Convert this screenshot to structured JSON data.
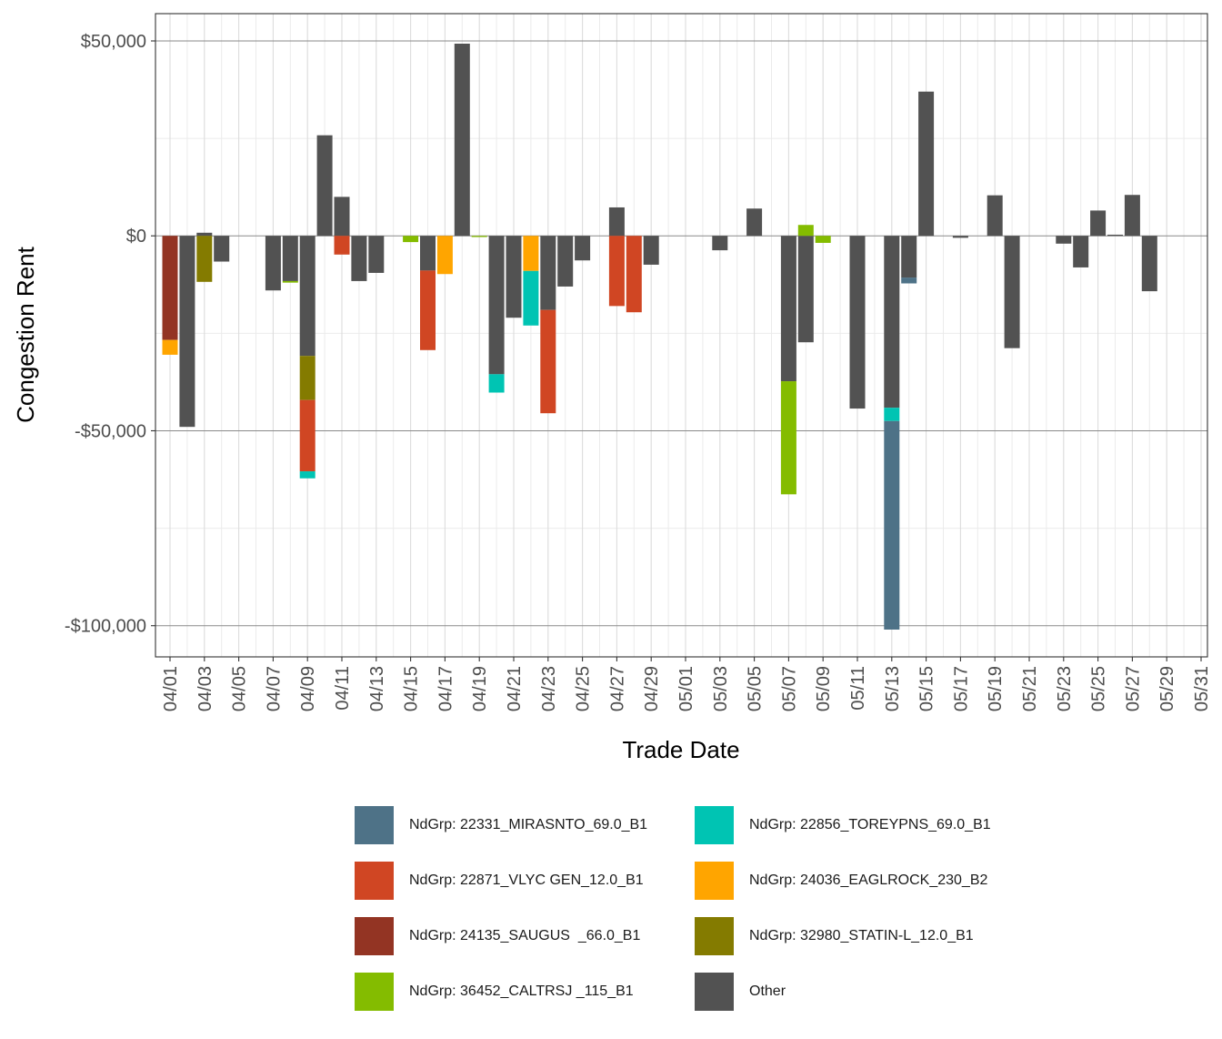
{
  "chart_data": {
    "type": "bar",
    "stacked": true,
    "xlabel": "Trade Date",
    "ylabel": "Congestion Rent",
    "ylim": [
      -108000,
      57000
    ],
    "y_ticks": [
      50000,
      0,
      -50000,
      -100000
    ],
    "y_tick_labels": [
      "$50,000",
      "$0",
      "-$50,000",
      "-$100,000"
    ],
    "grid": true,
    "legend_position": "bottom",
    "categories": [
      "04/01",
      "04/02",
      "04/03",
      "04/04",
      "04/05",
      "04/06",
      "04/07",
      "04/08",
      "04/09",
      "04/10",
      "04/11",
      "04/12",
      "04/13",
      "04/14",
      "04/15",
      "04/16",
      "04/17",
      "04/18",
      "04/19",
      "04/20",
      "04/21",
      "04/22",
      "04/23",
      "04/24",
      "04/25",
      "04/26",
      "04/27",
      "04/28",
      "04/29",
      "04/30",
      "05/01",
      "05/02",
      "05/03",
      "05/04",
      "05/05",
      "05/06",
      "05/07",
      "05/08",
      "05/09",
      "05/10",
      "05/11",
      "05/12",
      "05/13",
      "05/14",
      "05/15",
      "05/16",
      "05/17",
      "05/18",
      "05/19",
      "05/20",
      "05/21",
      "05/22",
      "05/23",
      "05/24",
      "05/25",
      "05/26",
      "05/27",
      "05/28",
      "05/29",
      "05/30",
      "05/31"
    ],
    "x_tick_labels": [
      "04/01",
      "04/03",
      "04/05",
      "04/07",
      "04/09",
      "04/11",
      "04/13",
      "04/15",
      "04/17",
      "04/19",
      "04/21",
      "04/23",
      "04/25",
      "04/27",
      "04/29",
      "05/01",
      "05/03",
      "05/05",
      "05/07",
      "05/09",
      "05/11",
      "05/13",
      "05/15",
      "05/17",
      "05/19",
      "05/21",
      "05/23",
      "05/25",
      "05/27",
      "05/29",
      "05/31"
    ],
    "stack_order": [
      "Other",
      "NdGrp: 24135_SAUGUS  _66.0_B1",
      "NdGrp: 32980_STATIN-L_12.0_B1",
      "NdGrp: 22871_VLYC GEN_12.0_B1",
      "NdGrp: 24036_EAGLROCK_230_B2",
      "NdGrp: 22856_TOREYPNS_69.0_B1",
      "NdGrp: 36452_CALTRSJ _115_B1",
      "NdGrp: 22331_MIRASNTO_69.0_B1"
    ],
    "series": [
      {
        "name": "NdGrp: 22331_MIRASNTO_69.0_B1",
        "color": "#4e7287",
        "values": [
          0,
          0,
          0,
          0,
          0,
          0,
          0,
          0,
          0,
          0,
          0,
          0,
          0,
          0,
          0,
          0,
          0,
          0,
          0,
          0,
          0,
          0,
          0,
          0,
          0,
          0,
          0,
          0,
          0,
          0,
          0,
          0,
          0,
          0,
          0,
          0,
          0,
          0,
          0,
          0,
          0,
          0,
          -53500,
          -1500,
          0,
          0,
          0,
          0,
          0,
          0,
          0,
          0,
          0,
          0,
          0,
          0,
          0,
          0,
          0,
          0,
          0
        ]
      },
      {
        "name": "NdGrp: 22856_TOREYPNS_69.0_B1",
        "color": "#00c4b3",
        "values": [
          0,
          0,
          0,
          0,
          0,
          0,
          0,
          0,
          -1800,
          0,
          0,
          0,
          0,
          0,
          0,
          0,
          0,
          0,
          0,
          -4700,
          0,
          -14000,
          0,
          0,
          0,
          0,
          0,
          0,
          0,
          0,
          0,
          0,
          0,
          0,
          0,
          0,
          0,
          0,
          0,
          0,
          0,
          0,
          -3400,
          0,
          0,
          0,
          0,
          0,
          0,
          0,
          0,
          0,
          0,
          0,
          0,
          0,
          0,
          0,
          0,
          0,
          0
        ]
      },
      {
        "name": "NdGrp: 22871_VLYC GEN_12.0_B1",
        "color": "#d04623",
        "values": [
          0,
          0,
          0,
          0,
          0,
          0,
          0,
          0,
          -18300,
          0,
          -4800,
          0,
          0,
          0,
          0,
          -20400,
          0,
          0,
          0,
          0,
          0,
          0,
          -26500,
          0,
          0,
          0,
          -18000,
          -19600,
          0,
          0,
          0,
          0,
          0,
          0,
          0,
          0,
          0,
          0,
          0,
          0,
          0,
          0,
          0,
          0,
          0,
          0,
          0,
          0,
          0,
          0,
          0,
          0,
          0,
          0,
          0,
          0,
          0,
          0,
          0,
          0,
          0
        ]
      },
      {
        "name": "NdGrp: 24036_EAGLROCK_230_B2",
        "color": "#ffa500",
        "values": [
          -3800,
          0,
          0,
          0,
          0,
          0,
          0,
          0,
          0,
          0,
          0,
          0,
          0,
          0,
          0,
          0,
          -9800,
          0,
          0,
          0,
          0,
          -9000,
          0,
          0,
          0,
          0,
          0,
          0,
          0,
          0,
          0,
          0,
          0,
          0,
          0,
          0,
          0,
          0,
          0,
          0,
          0,
          0,
          0,
          0,
          0,
          0,
          0,
          0,
          0,
          0,
          0,
          0,
          0,
          0,
          0,
          0,
          0,
          0,
          0,
          0,
          0
        ]
      },
      {
        "name": "NdGrp: 24135_SAUGUS  _66.0_B1",
        "color": "#933423",
        "values": [
          -26700,
          0,
          0,
          0,
          0,
          0,
          0,
          0,
          0,
          0,
          0,
          0,
          0,
          0,
          0,
          0,
          0,
          0,
          0,
          0,
          0,
          0,
          0,
          0,
          0,
          0,
          0,
          0,
          0,
          0,
          0,
          0,
          0,
          0,
          0,
          0,
          0,
          0,
          0,
          0,
          0,
          0,
          0,
          0,
          0,
          0,
          0,
          0,
          0,
          0,
          0,
          0,
          0,
          0,
          0,
          0,
          0,
          0,
          0,
          0,
          0
        ]
      },
      {
        "name": "NdGrp: 32980_STATIN-L_12.0_B1",
        "color": "#847b00",
        "values": [
          0,
          0,
          -11800,
          0,
          0,
          0,
          0,
          0,
          -11300,
          0,
          0,
          0,
          0,
          0,
          0,
          0,
          0,
          0,
          0,
          0,
          0,
          0,
          0,
          0,
          0,
          0,
          0,
          0,
          0,
          0,
          0,
          0,
          0,
          0,
          0,
          0,
          0,
          0,
          0,
          0,
          0,
          0,
          0,
          0,
          0,
          0,
          0,
          0,
          0,
          0,
          0,
          0,
          0,
          0,
          0,
          0,
          0,
          0,
          0,
          0,
          0
        ]
      },
      {
        "name": "NdGrp: 36452_CALTRSJ _115_B1",
        "color": "#84bc00",
        "values": [
          0,
          0,
          0,
          0,
          0,
          0,
          0,
          -400,
          0,
          0,
          0,
          0,
          0,
          0,
          -1600,
          0,
          0,
          0,
          -300,
          0,
          0,
          0,
          0,
          0,
          0,
          0,
          0,
          0,
          0,
          0,
          0,
          0,
          0,
          0,
          0,
          0,
          -29000,
          2800,
          -1800,
          0,
          0,
          0,
          0,
          0,
          0,
          0,
          0,
          0,
          0,
          0,
          0,
          0,
          0,
          0,
          0,
          0,
          0,
          0,
          0,
          0,
          0
        ]
      },
      {
        "name": "Other",
        "color": "#525252",
        "values": [
          0,
          -49000,
          800,
          -6600,
          0,
          0,
          -14000,
          -11600,
          -30800,
          25800,
          10000,
          -11600,
          -9500,
          0,
          0,
          -8900,
          0,
          49300,
          0,
          -35500,
          -21000,
          0,
          -19000,
          -13000,
          -6300,
          0,
          7300,
          0,
          -7400,
          0,
          0,
          0,
          -3700,
          0,
          7000,
          0,
          -37300,
          -27300,
          0,
          0,
          -44300,
          0,
          -44100,
          -10700,
          37000,
          0,
          -500,
          0,
          10400,
          -28800,
          0,
          0,
          -2000,
          -8100,
          6500,
          300,
          10500,
          -14200,
          0,
          0,
          0
        ]
      }
    ]
  }
}
